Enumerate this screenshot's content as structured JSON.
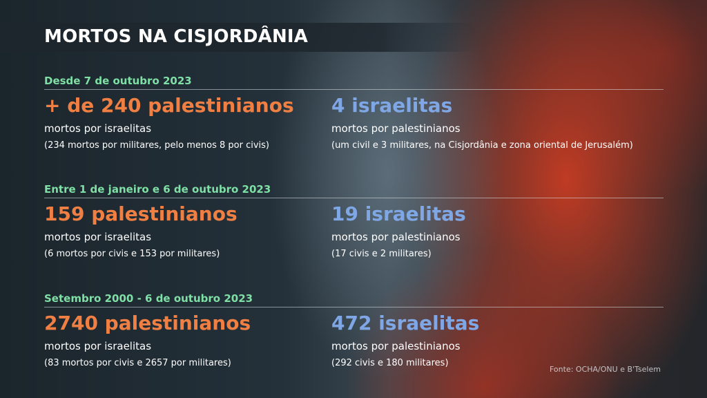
{
  "title": "MORTOS NA CISJORDÂNIA",
  "sections": [
    {
      "label": "Desde 7 de outubro 2023",
      "left": {
        "headline": "+ de 240 palestinianos",
        "subtitle": "mortos por israelitas",
        "detail": "(234 mortos por militares, pelo menos 8 por civis)"
      },
      "right": {
        "headline": "4 israelitas",
        "subtitle": "mortos por palestinianos",
        "detail": "(um civil e 3 militares, na Cisjordânia e zona oriental de Jerusalém)"
      }
    },
    {
      "label": "Entre 1 de janeiro e 6 de outubro 2023",
      "left": {
        "headline": "159 palestinianos",
        "subtitle": "mortos por israelitas",
        "detail": "(6 mortos por civis e 153 por militares)"
      },
      "right": {
        "headline": "19 israelitas",
        "subtitle": "mortos por palestinianos",
        "detail": "(17 civis e 2 militares)"
      }
    },
    {
      "label": "Setembro 2000 - 6 de outubro 2023",
      "left": {
        "headline": "2740 palestinianos",
        "subtitle": "mortos por israelitas",
        "detail": "(83 mortos por civis e 2657 por militares)"
      },
      "right": {
        "headline": "472 israelitas",
        "subtitle": "mortos por palestinianos",
        "detail": "(292 civis e 180 militares)"
      }
    }
  ],
  "source": "Fonte: OCHA/ONU e B'Tselem",
  "colors": {
    "section_label": "#7fe0a6",
    "palestinian_headline": "#ef7f43",
    "israeli_headline": "#7fa7e6"
  }
}
